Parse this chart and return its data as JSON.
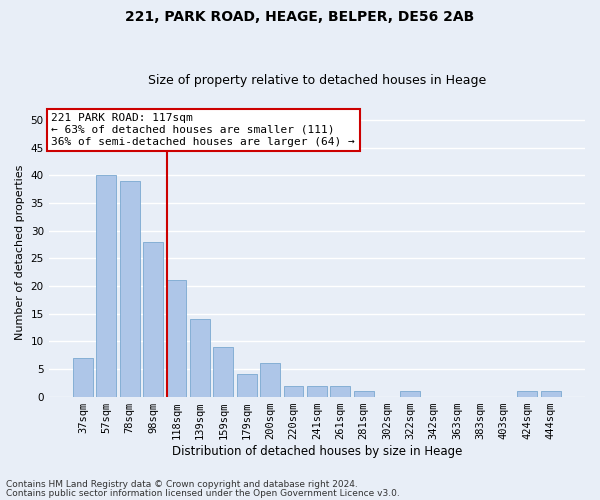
{
  "title": "221, PARK ROAD, HEAGE, BELPER, DE56 2AB",
  "subtitle": "Size of property relative to detached houses in Heage",
  "xlabel": "Distribution of detached houses by size in Heage",
  "ylabel": "Number of detached properties",
  "categories": [
    "37sqm",
    "57sqm",
    "78sqm",
    "98sqm",
    "118sqm",
    "139sqm",
    "159sqm",
    "179sqm",
    "200sqm",
    "220sqm",
    "241sqm",
    "261sqm",
    "281sqm",
    "302sqm",
    "322sqm",
    "342sqm",
    "363sqm",
    "383sqm",
    "403sqm",
    "424sqm",
    "444sqm"
  ],
  "values": [
    7,
    40,
    39,
    28,
    21,
    14,
    9,
    4,
    6,
    2,
    2,
    2,
    1,
    0,
    1,
    0,
    0,
    0,
    0,
    1,
    1
  ],
  "bar_color": "#aec6e8",
  "bar_edgecolor": "#7aa8d0",
  "vline_index": 4,
  "vline_color": "#cc0000",
  "annotation_text": "221 PARK ROAD: 117sqm\n← 63% of detached houses are smaller (111)\n36% of semi-detached houses are larger (64) →",
  "annotation_box_color": "#ffffff",
  "annotation_box_edgecolor": "#cc0000",
  "ylim": [
    0,
    52
  ],
  "yticks": [
    0,
    5,
    10,
    15,
    20,
    25,
    30,
    35,
    40,
    45,
    50
  ],
  "footnote1": "Contains HM Land Registry data © Crown copyright and database right 2024.",
  "footnote2": "Contains public sector information licensed under the Open Government Licence v3.0.",
  "bg_color": "#e8eef7",
  "grid_color": "#ffffff",
  "title_fontsize": 10,
  "subtitle_fontsize": 9,
  "xlabel_fontsize": 8.5,
  "ylabel_fontsize": 8,
  "tick_fontsize": 7.5,
  "annot_fontsize": 8,
  "footnote_fontsize": 6.5
}
